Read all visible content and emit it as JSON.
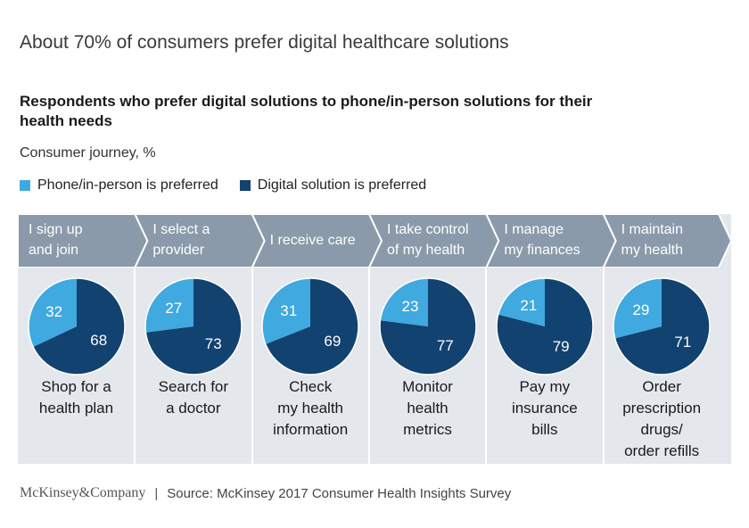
{
  "title": "About 70% of consumers prefer digital healthcare solutions",
  "subtitle": "Respondents who prefer digital solutions to phone/in-person solutions for their health needs",
  "unit_label": "Consumer journey, %",
  "colors": {
    "phone": "#3fa9e0",
    "digital": "#12426f",
    "stage_arrow": "#8a9aaa",
    "band": "#e4e7eb"
  },
  "legend": [
    {
      "label": "Phone/in-person is preferred",
      "color": "#3fa9e0"
    },
    {
      "label": "Digital solution is preferred",
      "color": "#12426f"
    }
  ],
  "chart_data": {
    "type": "pie",
    "series_names": [
      "Phone/in-person is preferred",
      "Digital solution is preferred"
    ],
    "stages": [
      {
        "stage": "I sign up and join",
        "item": "Shop for a health plan",
        "phone": 32,
        "digital": 68
      },
      {
        "stage": "I select a provider",
        "item": "Search for a doctor",
        "phone": 27,
        "digital": 73
      },
      {
        "stage": "I receive care",
        "item": "Check my health information",
        "phone": 31,
        "digital": 69
      },
      {
        "stage": "I take control of my health",
        "item": "Monitor health metrics",
        "phone": 23,
        "digital": 77
      },
      {
        "stage": "I manage my finances",
        "item": "Pay my insurance bills",
        "phone": 21,
        "digital": 79
      },
      {
        "stage": "I maintain my health",
        "item": "Order prescription drugs/ order refills",
        "phone": 29,
        "digital": 71
      }
    ]
  },
  "stage_lines": [
    [
      "I sign up",
      "and join"
    ],
    [
      "I select a",
      "provider"
    ],
    [
      "I receive care"
    ],
    [
      "I take control",
      "of my health"
    ],
    [
      "I manage",
      "my finances"
    ],
    [
      "I maintain",
      "my health"
    ]
  ],
  "item_lines": [
    [
      "Shop for a",
      "health plan"
    ],
    [
      "Search for",
      "a doctor"
    ],
    [
      "Check",
      "my health",
      "information"
    ],
    [
      "Monitor",
      "health",
      "metrics"
    ],
    [
      "Pay my",
      "insurance",
      "bills"
    ],
    [
      "Order",
      "prescription",
      "drugs/",
      "order refills"
    ]
  ],
  "footer": {
    "brand": "McKinsey&Company",
    "separator": "|",
    "source": "Source: McKinsey 2017 Consumer Health Insights Survey"
  }
}
